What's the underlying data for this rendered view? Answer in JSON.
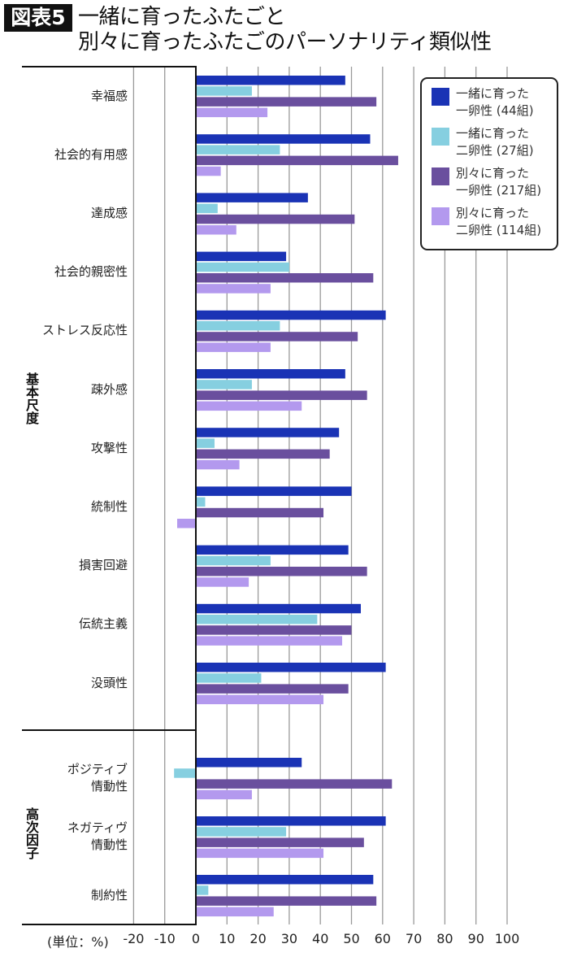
{
  "title": {
    "badge": "図表5",
    "line1": "一緒に育ったふたごと",
    "line2": "別々に育ったふたごのパーソナリティ類似性"
  },
  "chart_data": {
    "type": "bar",
    "orientation": "horizontal",
    "title": "一緒に育ったふたごと別々に育ったふたごのパーソナリティ類似性",
    "unit_label": "(単位：%)",
    "xlim": [
      -20,
      100
    ],
    "xticks": [
      "-20",
      "-10",
      "0",
      "10",
      "20",
      "30",
      "40",
      "50",
      "60",
      "70",
      "80",
      "90",
      "100"
    ],
    "grid": true,
    "legend_position": "top-right",
    "groups": [
      {
        "name": "基本尺度",
        "start": 0,
        "end": 10
      },
      {
        "name": "高次因子",
        "start": 11,
        "end": 13
      }
    ],
    "categories": [
      "幸福感",
      "社会的有用感",
      "達成感",
      "社会的親密性",
      "ストレス反応性",
      "疎外感",
      "攻撃性",
      "統制性",
      "損害回避",
      "伝統主義",
      "没頭性",
      "ポジティブ\n情動性",
      "ネガティヴ\n情動性",
      "制約性"
    ],
    "series": [
      {
        "name": "一緒に育った\n一卵性 (44組)",
        "color": "#1a33b5",
        "values": [
          48,
          56,
          36,
          29,
          61,
          48,
          46,
          50,
          49,
          53,
          61,
          34,
          61,
          57
        ]
      },
      {
        "name": "一緒に育った\n二卵性 (27組)",
        "color": "#86cfe0",
        "values": [
          18,
          27,
          7,
          30,
          27,
          18,
          6,
          3,
          24,
          39,
          21,
          -7,
          29,
          4
        ]
      },
      {
        "name": "別々に育った\n一卵性 (217組)",
        "color": "#6a4f9e",
        "values": [
          58,
          65,
          51,
          57,
          52,
          55,
          43,
          41,
          55,
          50,
          49,
          63,
          54,
          58
        ]
      },
      {
        "name": "別々に育った\n二卵性 (114組)",
        "color": "#b399ee",
        "values": [
          23,
          8,
          13,
          24,
          24,
          34,
          14,
          -6,
          17,
          47,
          41,
          18,
          41,
          25
        ]
      }
    ]
  }
}
